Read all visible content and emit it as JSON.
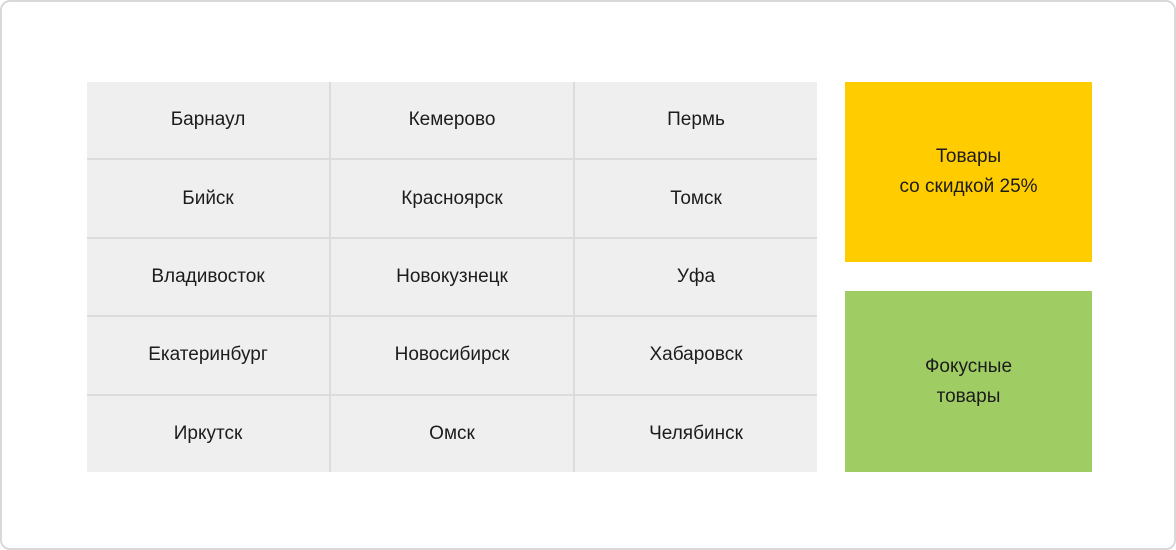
{
  "page": {
    "background_color": "#ffffff",
    "border_color": "#d9d9d9"
  },
  "city_grid": {
    "cell_background_color": "#efefef",
    "divider_color": "#dcdcdc",
    "text_color": "#1c1c1c",
    "rows": [
      [
        "Барнаул",
        "Кемерово",
        "Пермь"
      ],
      [
        "Бийск",
        "Красноярск",
        "Томск"
      ],
      [
        "Владивосток",
        "Новокузнецк",
        "Уфа"
      ],
      [
        "Екатеринбург",
        "Новосибирск",
        "Хабаровск"
      ],
      [
        "Иркутск",
        "Омск",
        "Челябинск"
      ]
    ]
  },
  "action_buttons": {
    "discount": {
      "color": "#ffcc00",
      "label_line1": "Товары",
      "label_line2": "со скидкой 25%"
    },
    "focus": {
      "color": "#a0cc64",
      "label_line1": "Фокусные",
      "label_line2": "товары"
    }
  }
}
